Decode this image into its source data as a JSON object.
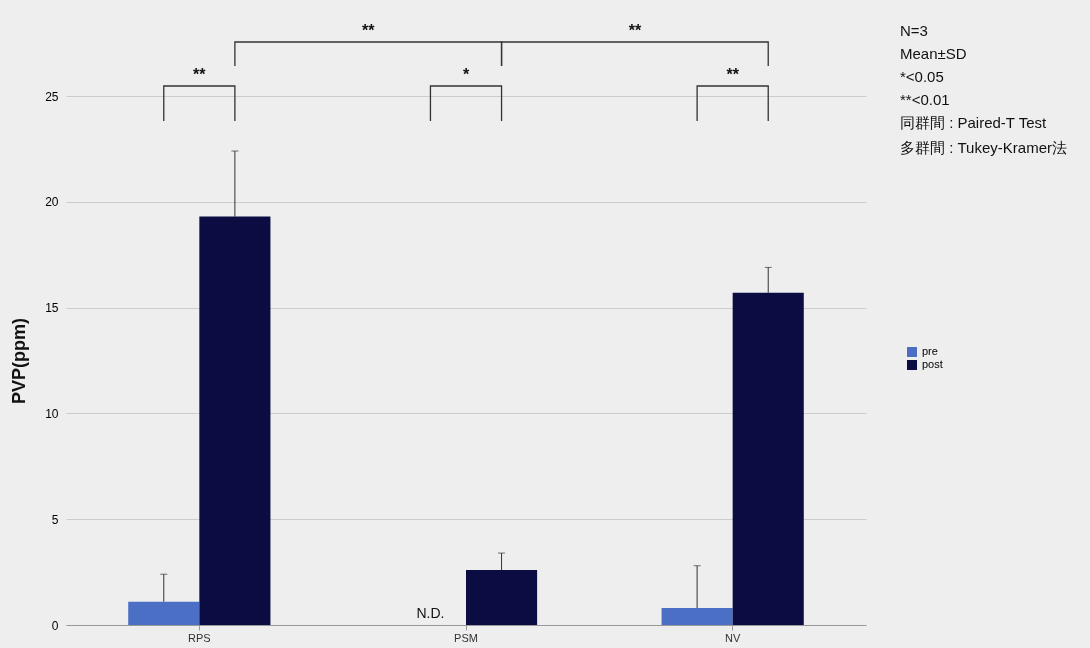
{
  "chart_data": {
    "type": "bar",
    "ylabel": "PVP(ppm)",
    "categories": [
      "RPS",
      "PSM",
      "NV"
    ],
    "series": [
      {
        "name": "pre",
        "color": "#4a6fc4",
        "values": [
          1.1,
          null,
          0.8
        ],
        "errors": [
          [
            1.1,
            2.4
          ],
          null,
          [
            0.8,
            2.8
          ]
        ],
        "value_labels": [
          null,
          "N.D.",
          null
        ]
      },
      {
        "name": "post",
        "color": "#0b0c42",
        "values": [
          19.3,
          2.6,
          15.7
        ],
        "errors": [
          [
            19.3,
            22.4
          ],
          [
            2.6,
            3.4
          ],
          [
            15.7,
            16.9
          ]
        ]
      }
    ],
    "ylim": [
      0,
      25
    ],
    "yticks": [
      0,
      5,
      10,
      15,
      20,
      25
    ],
    "grid": "y",
    "legend": "right",
    "annotations": [
      "**",
      "*",
      "**",
      "**",
      "**",
      "N=3",
      "Mean±SD",
      "*<0.05",
      "**<0.01",
      "同群間 : Paired-T Test",
      "多群間 : Tukey-Kramer法"
    ]
  }
}
